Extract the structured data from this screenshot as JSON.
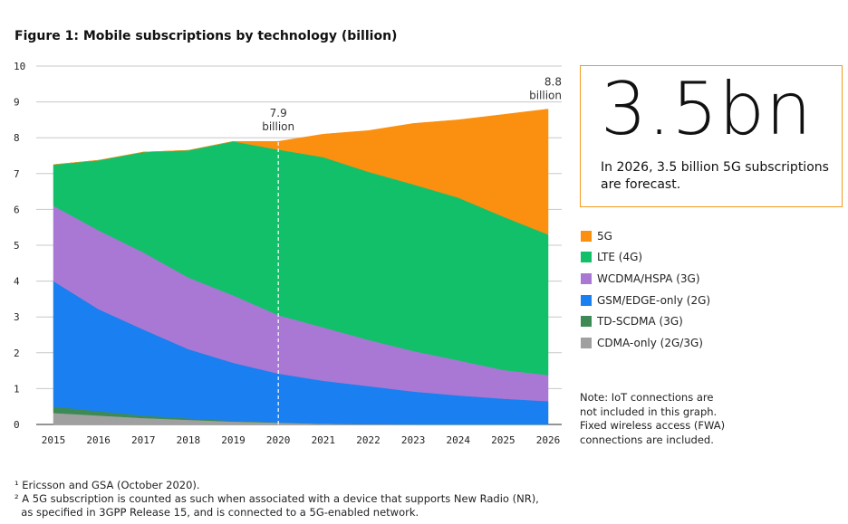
{
  "chart_data": {
    "type": "area",
    "title": "Figure 1: Mobile subscriptions by technology (billion)",
    "x": [
      "2015",
      "2016",
      "2017",
      "2018",
      "2019",
      "2020",
      "2021",
      "2022",
      "2023",
      "2024",
      "2025",
      "2026"
    ],
    "ylim": [
      0,
      10
    ],
    "yticks": [
      "0",
      "1",
      "2",
      "3",
      "4",
      "5",
      "6",
      "7",
      "8",
      "9",
      "10"
    ],
    "stacked": true,
    "series": [
      {
        "name": "CDMA-only (2G/3G)",
        "color": "#a0a0a0",
        "values": [
          0.32,
          0.25,
          0.18,
          0.13,
          0.08,
          0.05,
          0.02,
          0.01,
          0,
          0,
          0,
          0
        ]
      },
      {
        "name": "TD-SCDMA (3G)",
        "color": "#3d8a57",
        "values": [
          0.18,
          0.12,
          0.07,
          0.04,
          0.02,
          0.01,
          0,
          0,
          0,
          0,
          0,
          0
        ]
      },
      {
        "name": "GSM/EDGE-only (2G)",
        "color": "#1a7ff0",
        "values": [
          3.5,
          2.85,
          2.4,
          1.93,
          1.62,
          1.36,
          1.2,
          1.06,
          0.92,
          0.81,
          0.72,
          0.65
        ]
      },
      {
        "name": "WCDMA/HSPA (3G)",
        "color": "#a878d4",
        "values": [
          2.1,
          2.2,
          2.15,
          2.0,
          1.88,
          1.63,
          1.49,
          1.29,
          1.13,
          0.98,
          0.8,
          0.73
        ]
      },
      {
        "name": "LTE (4G)",
        "color": "#13c06a",
        "values": [
          1.15,
          1.95,
          2.8,
          3.55,
          4.3,
          4.62,
          4.75,
          4.69,
          4.65,
          4.54,
          4.28,
          3.92
        ]
      },
      {
        "name": "5G",
        "color": "#fb8f0f",
        "values": [
          0,
          0,
          0,
          0,
          0,
          0.23,
          0.64,
          1.15,
          1.7,
          2.17,
          2.85,
          3.5
        ]
      }
    ],
    "annotations": [
      {
        "x": "2020",
        "y": 7.9,
        "text": [
          "7.9",
          "billion"
        ]
      },
      {
        "x": "2026",
        "y": 8.8,
        "text": [
          "8.8",
          "billion"
        ]
      }
    ],
    "legend_position": "right"
  },
  "callout": {
    "big": "3.5bn",
    "text": "In 2026, 3.5 billion 5G subscriptions are forecast."
  },
  "legend": [
    {
      "label": "5G",
      "color": "#fb8f0f"
    },
    {
      "label": "LTE (4G)",
      "color": "#13c06a"
    },
    {
      "label": "WCDMA/HSPA (3G)",
      "color": "#a878d4"
    },
    {
      "label": "GSM/EDGE-only (2G)",
      "color": "#1a7ff0"
    },
    {
      "label": "TD-SCDMA (3G)",
      "color": "#3d8a57"
    },
    {
      "label": "CDMA-only (2G/3G)",
      "color": "#a0a0a0"
    }
  ],
  "note": {
    "line1": "Note: IoT connections are",
    "line2": "not included in this graph.",
    "line3": "Fixed wireless access (FWA)",
    "line4": "connections are included."
  },
  "footnotes": {
    "fn1": "¹ Ericsson and GSA (October 2020).",
    "fn2a": "² A 5G subscription is counted as such when associated with a device that supports New Radio (NR),",
    "fn2b": "  as specified in 3GPP Release 15, and is connected to a 5G-enabled network."
  }
}
